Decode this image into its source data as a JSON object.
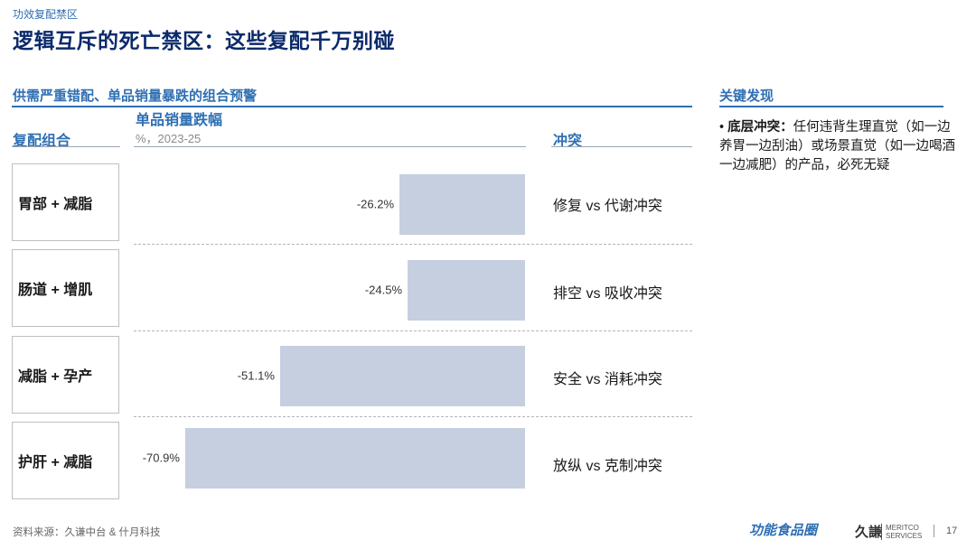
{
  "header": {
    "kicker": "功效复配禁区",
    "title": "逻辑互斥的死亡禁区：这些复配千万别碰"
  },
  "left_section": {
    "title": "供需严重错配、单品销量暴跌的组合预警",
    "col_combo": "复配组合",
    "col_metric": "单品销量跌幅",
    "col_metric_unit": "%，2023-25",
    "col_conflict": "冲突"
  },
  "rows": [
    {
      "combo": "胃部 + 减脂",
      "conflict": "修复 vs 代谢冲突"
    },
    {
      "combo": "肠道 + 增肌",
      "conflict": "排空 vs 吸收冲突"
    },
    {
      "combo": "减脂 + 孕产",
      "conflict": "安全 vs 消耗冲突"
    },
    {
      "combo": "护肝 + 减脂",
      "conflict": "放纵 vs 克制冲突"
    }
  ],
  "chart_data": {
    "type": "bar",
    "orientation": "horizontal",
    "categories": [
      "胃部 + 减脂",
      "肠道 + 增肌",
      "减脂 + 孕产",
      "护肝 + 减脂"
    ],
    "values": [
      -26.2,
      -24.5,
      -51.1,
      -70.9
    ],
    "value_labels": [
      "-26.2%",
      "-24.5%",
      "-51.1%",
      "-70.9%"
    ],
    "title": "单品销量跌幅",
    "xlabel": "%，2023-25",
    "xlim": [
      -80,
      0
    ],
    "grid": false,
    "bar_color": "#c5cfdf"
  },
  "right_section": {
    "title": "关键发现",
    "bullet": "•",
    "finding_bold": "底层冲突：",
    "finding_text": "任何违背生理直觉（如一边养胃一边刮油）或场景直觉（如一边喝酒一边减肥）的产品，必死无疑"
  },
  "footer": {
    "source": "资料来源：久谦中台 & 什月科技",
    "logo_brand": "功能食品圈",
    "logo_company": "久謙",
    "logo_meritco_1": "MERITCO",
    "logo_meritco_2": "SERVICES",
    "page_number": "17"
  },
  "colors": {
    "accent": "#2f6fb3",
    "title": "#0b2a6b"
  }
}
